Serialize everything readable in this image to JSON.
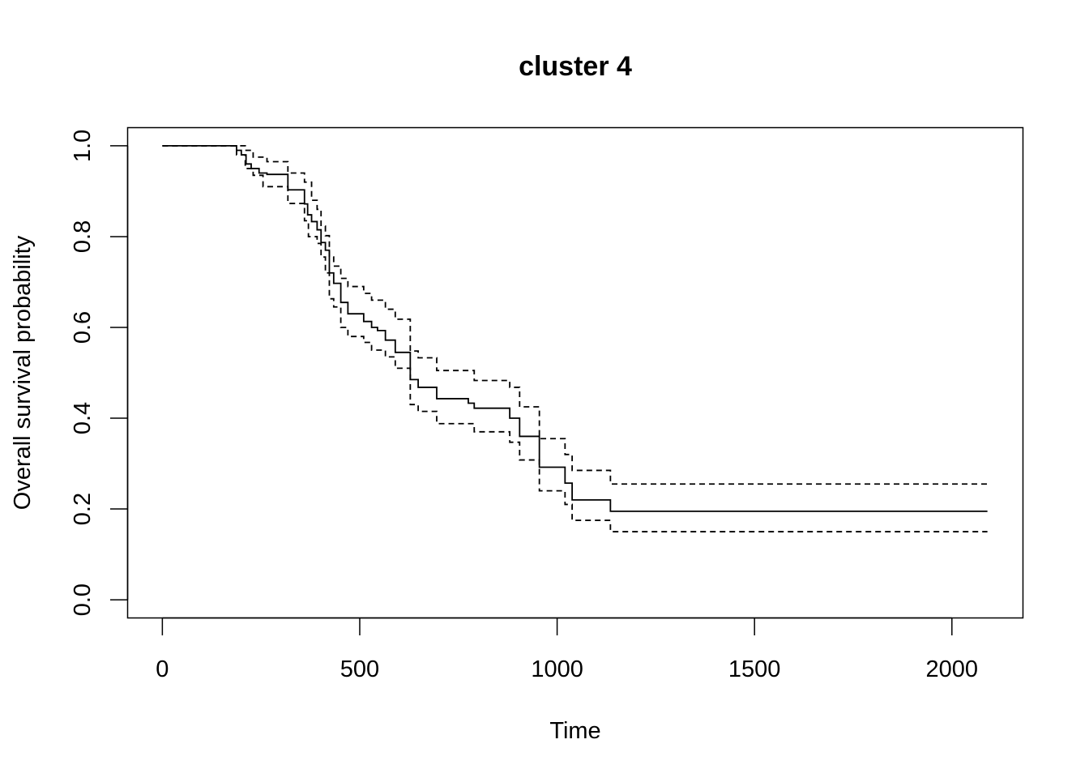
{
  "chart_data": {
    "type": "line",
    "title": "cluster 4",
    "xlabel": "Time",
    "ylabel": "Overall survival probability",
    "xlim": [
      -88,
      2180
    ],
    "ylim": [
      -0.04,
      1.04
    ],
    "xticks": [
      0,
      500,
      1000,
      1500,
      2000
    ],
    "xtick_labels": [
      "0",
      "500",
      "1000",
      "1500",
      "2000"
    ],
    "yticks": [
      0.0,
      0.2,
      0.4,
      0.6,
      0.8,
      1.0
    ],
    "ytick_labels": [
      "0.0",
      "0.2",
      "0.4",
      "0.6",
      "0.8",
      "1.0"
    ],
    "grid": false,
    "legend": "none",
    "series": [
      {
        "style": "solid",
        "color": "#000000",
        "x": [
          0,
          188,
          200,
          212,
          225,
          245,
          265,
          318,
          360,
          368,
          378,
          392,
          402,
          413,
          423,
          434,
          452,
          470,
          510,
          530,
          545,
          565,
          590,
          628,
          648,
          695,
          775,
          790,
          880,
          905,
          955,
          1020,
          1038,
          1135,
          2090
        ],
        "y": [
          1.0,
          0.99,
          0.98,
          0.96,
          0.95,
          0.94,
          0.937,
          0.903,
          0.872,
          0.848,
          0.833,
          0.815,
          0.787,
          0.77,
          0.72,
          0.697,
          0.655,
          0.63,
          0.613,
          0.6,
          0.593,
          0.572,
          0.545,
          0.485,
          0.468,
          0.443,
          0.433,
          0.422,
          0.4,
          0.36,
          0.292,
          0.257,
          0.22,
          0.195,
          0.195
        ]
      },
      {
        "style": "dashed",
        "color": "#000000",
        "x": [
          0,
          188,
          210,
          230,
          265,
          318,
          360,
          378,
          392,
          402,
          413,
          423,
          434,
          452,
          470,
          510,
          530,
          565,
          590,
          628,
          648,
          695,
          790,
          880,
          905,
          955,
          1020,
          1038,
          1135,
          2090
        ],
        "y": [
          1.0,
          1.0,
          0.99,
          0.975,
          0.965,
          0.94,
          0.92,
          0.88,
          0.86,
          0.823,
          0.802,
          0.755,
          0.735,
          0.708,
          0.69,
          0.675,
          0.66,
          0.64,
          0.618,
          0.548,
          0.533,
          0.505,
          0.483,
          0.468,
          0.425,
          0.355,
          0.32,
          0.285,
          0.255,
          0.255
        ]
      },
      {
        "style": "dashed",
        "color": "#000000",
        "x": [
          0,
          188,
          210,
          230,
          255,
          318,
          360,
          370,
          392,
          402,
          413,
          423,
          434,
          452,
          470,
          510,
          530,
          565,
          590,
          628,
          648,
          695,
          790,
          880,
          905,
          955,
          1020,
          1038,
          1135,
          2090
        ],
        "y": [
          1.0,
          0.98,
          0.95,
          0.935,
          0.91,
          0.873,
          0.835,
          0.8,
          0.785,
          0.755,
          0.72,
          0.663,
          0.645,
          0.6,
          0.58,
          0.567,
          0.55,
          0.535,
          0.51,
          0.43,
          0.415,
          0.388,
          0.37,
          0.347,
          0.308,
          0.24,
          0.21,
          0.175,
          0.15,
          0.15
        ]
      }
    ]
  }
}
